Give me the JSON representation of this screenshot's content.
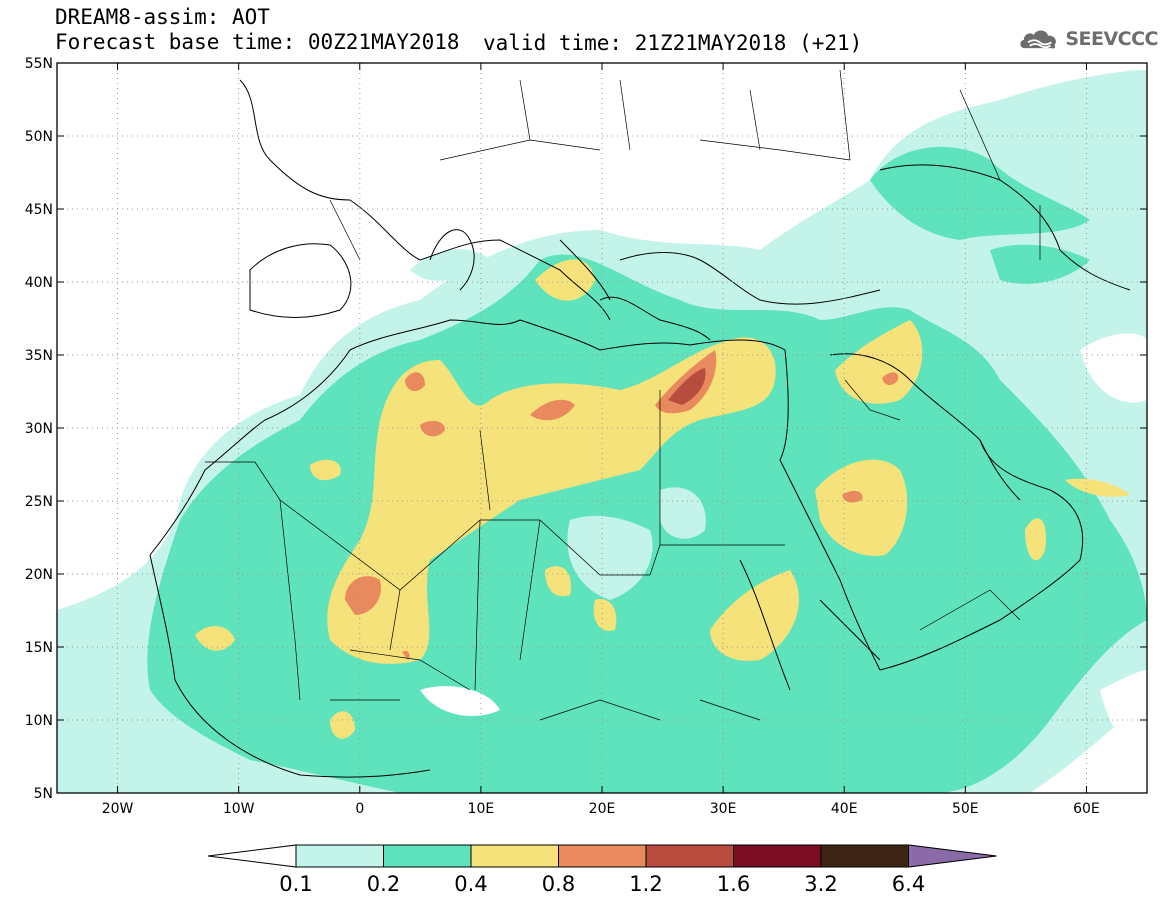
{
  "header": {
    "line1": "DREAM8-assim: AOT",
    "line2": "Forecast base time: 00Z21MAY2018",
    "valid": "valid time: 21Z21MAY2018 (+21)",
    "logo_text": "SEEVCCC",
    "logo_icon": "cloud-icon"
  },
  "map": {
    "extent": {
      "lon": [
        -25,
        65
      ],
      "lat": [
        5,
        55
      ]
    },
    "lat_labels": [
      "5N",
      "10N",
      "15N",
      "20N",
      "25N",
      "30N",
      "35N",
      "40N",
      "45N",
      "50N",
      "55N"
    ],
    "lat_values": [
      5,
      10,
      15,
      20,
      25,
      30,
      35,
      40,
      45,
      50,
      55
    ],
    "lon_labels": [
      "20W",
      "10W",
      "0",
      "10E",
      "20E",
      "30E",
      "40E",
      "50E",
      "60E"
    ],
    "lon_values": [
      -20,
      -10,
      0,
      10,
      20,
      30,
      40,
      50,
      60
    ],
    "background": "#ffffff"
  },
  "colorbar": {
    "labels": [
      "0.1",
      "0.2",
      "0.4",
      "0.8",
      "1.2",
      "1.6",
      "3.2",
      "6.4"
    ],
    "colors": [
      "#c4f3ea",
      "#5ee3bd",
      "#f5e27a",
      "#e88a5e",
      "#b84c3e",
      "#7c0d23",
      "#3e2416",
      "#8a6aa8"
    ],
    "under_color": "#ffffff"
  },
  "fields": {
    "c1": "#c4f3ea",
    "c2": "#5ee3bd",
    "c3": "#f5e27a",
    "c4": "#e88a5e",
    "c5": "#b84c3e"
  }
}
